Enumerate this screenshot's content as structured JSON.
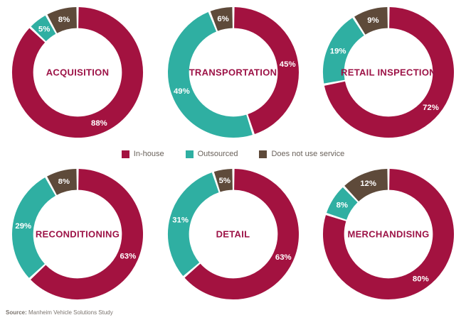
{
  "colors": {
    "in_house": "#a31240",
    "outsourced": "#2fafa2",
    "not_used": "#5e4a3a",
    "title_text": "#9c1246",
    "percent_label_text": "#ffffff",
    "legend_text": "#6a625b",
    "source_text": "#7b746e"
  },
  "legend": {
    "items": [
      {
        "label": "In-house",
        "key": "in_house"
      },
      {
        "label": "Outsourced",
        "key": "outsourced"
      },
      {
        "label": "Does not use service",
        "key": "not_used"
      }
    ]
  },
  "source": {
    "prefix": "Source:",
    "text": " Manheim Vehicle Solutions Study"
  },
  "chart_data": [
    {
      "type": "pie",
      "variant": "donut",
      "title": "ACQUISITION",
      "start_angle_deg": 0,
      "direction": "clockwise",
      "slices": [
        {
          "series": "In-house",
          "key": "in_house",
          "value": 88,
          "label": "88%"
        },
        {
          "series": "Outsourced",
          "key": "outsourced",
          "value": 5,
          "label": "5%"
        },
        {
          "series": "Does not use service",
          "key": "not_used",
          "value": 8,
          "label": "8%"
        }
      ]
    },
    {
      "type": "pie",
      "variant": "donut",
      "title": "TRANSPORTATION",
      "start_angle_deg": 0,
      "direction": "clockwise",
      "slices": [
        {
          "series": "In-house",
          "key": "in_house",
          "value": 45,
          "label": "45%"
        },
        {
          "series": "Outsourced",
          "key": "outsourced",
          "value": 49,
          "label": "49%"
        },
        {
          "series": "Does not use service",
          "key": "not_used",
          "value": 6,
          "label": "6%"
        }
      ]
    },
    {
      "type": "pie",
      "variant": "donut",
      "title": "RETAIL INSPECTION",
      "start_angle_deg": 0,
      "direction": "clockwise",
      "slices": [
        {
          "series": "In-house",
          "key": "in_house",
          "value": 72,
          "label": "72%"
        },
        {
          "series": "Outsourced",
          "key": "outsourced",
          "value": 19,
          "label": "19%"
        },
        {
          "series": "Does not use service",
          "key": "not_used",
          "value": 9,
          "label": "9%"
        }
      ]
    },
    {
      "type": "pie",
      "variant": "donut",
      "title": "RECONDITIONING",
      "start_angle_deg": 0,
      "direction": "clockwise",
      "slices": [
        {
          "series": "In-house",
          "key": "in_house",
          "value": 63,
          "label": "63%"
        },
        {
          "series": "Outsourced",
          "key": "outsourced",
          "value": 29,
          "label": "29%"
        },
        {
          "series": "Does not use service",
          "key": "not_used",
          "value": 8,
          "label": "8%"
        }
      ]
    },
    {
      "type": "pie",
      "variant": "donut",
      "title": "DETAIL",
      "start_angle_deg": 0,
      "direction": "clockwise",
      "slices": [
        {
          "series": "In-house",
          "key": "in_house",
          "value": 63,
          "label": "63%"
        },
        {
          "series": "Outsourced",
          "key": "outsourced",
          "value": 31,
          "label": "31%"
        },
        {
          "series": "Does not use service",
          "key": "not_used",
          "value": 5,
          "label": "5%"
        }
      ]
    },
    {
      "type": "pie",
      "variant": "donut",
      "title": "MERCHANDISING",
      "start_angle_deg": 0,
      "direction": "clockwise",
      "slices": [
        {
          "series": "In-house",
          "key": "in_house",
          "value": 80,
          "label": "80%"
        },
        {
          "series": "Outsourced",
          "key": "outsourced",
          "value": 8,
          "label": "8%"
        },
        {
          "series": "Does not use service",
          "key": "not_used",
          "value": 12,
          "label": "12%"
        }
      ]
    }
  ]
}
